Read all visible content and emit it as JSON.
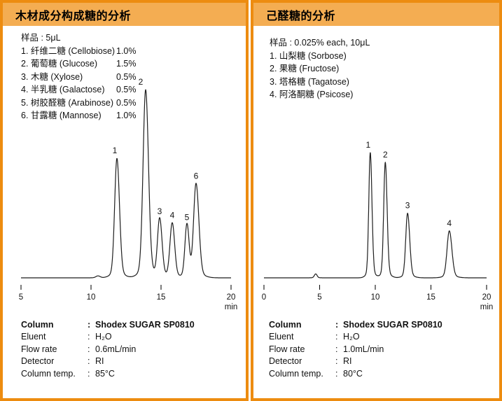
{
  "ui": {
    "colon": ":"
  },
  "panels": [
    {
      "title": "木材成分构成糖的分析",
      "sample_header": "样品 : 5μL",
      "sample_items": [
        {
          "name": "1. 纤维二糖 (Cellobiose)",
          "value": "1.0%"
        },
        {
          "name": "2. 葡萄糖 (Glucose)",
          "value": "1.5%"
        },
        {
          "name": "3. 木糖 (Xylose)",
          "value": "0.5%"
        },
        {
          "name": "4. 半乳糖 (Galactose)",
          "value": "0.5%"
        },
        {
          "name": "5. 树胶醛糖 (Arabinose)",
          "value": "0.5%"
        },
        {
          "name": "6. 甘露糖 (Mannose)",
          "value": "1.0%"
        }
      ],
      "conditions": [
        {
          "label": "Column",
          "value": "Shodex SUGAR SP0810",
          "bold": true
        },
        {
          "label": "Eluent",
          "value": "H₂O",
          "bold": false
        },
        {
          "label": "Flow rate",
          "value": "0.6mL/min",
          "bold": false
        },
        {
          "label": "Detector",
          "value": "RI",
          "bold": false
        },
        {
          "label": "Column temp.",
          "value": "85°C",
          "bold": false
        }
      ]
    },
    {
      "title": "己醛糖的分析",
      "sample_header": "样品 : 0.025% each, 10μL",
      "sample_items": [
        {
          "name": "1. 山梨糖 (Sorbose)",
          "value": ""
        },
        {
          "name": "2. 果糖 (Fructose)",
          "value": ""
        },
        {
          "name": "3. 塔格糖 (Tagatose)",
          "value": ""
        },
        {
          "name": "4. 阿洛酮糖 (Psicose)",
          "value": ""
        }
      ],
      "conditions": [
        {
          "label": "Column",
          "value": "Shodex SUGAR SP0810",
          "bold": true
        },
        {
          "label": "Eluent",
          "value": "H₂O",
          "bold": false
        },
        {
          "label": "Flow rate",
          "value": "1.0mL/min",
          "bold": false
        },
        {
          "label": "Detector",
          "value": "RI",
          "bold": false
        },
        {
          "label": "Column temp.",
          "value": "80°C",
          "bold": false
        }
      ]
    }
  ],
  "chart_data": [
    {
      "type": "line",
      "title": "木材成分构成糖的分析",
      "xlabel": "min",
      "ylabel": "",
      "x_axis": {
        "min": 5,
        "max": 20,
        "ticks": [
          5,
          10,
          15,
          20
        ]
      },
      "ylim": [
        0,
        100
      ],
      "grid": false,
      "legend": false,
      "line_color": "#1e1e1e",
      "peaks": [
        {
          "label": "",
          "t": 10.5,
          "v": 1,
          "sl": 0.15,
          "sr": 0.15,
          "dx": 0
        },
        {
          "label": "1",
          "t": 11.85,
          "v": 61,
          "sl": 0.16,
          "sr": 0.18,
          "dx": -3
        },
        {
          "label": "2",
          "t": 13.9,
          "v": 96,
          "sl": 0.18,
          "sr": 0.2,
          "dx": -7
        },
        {
          "label": "3",
          "t": 14.9,
          "v": 30,
          "sl": 0.15,
          "sr": 0.17,
          "dx": 0
        },
        {
          "label": "4",
          "t": 15.8,
          "v": 28,
          "sl": 0.16,
          "sr": 0.17,
          "dx": 0
        },
        {
          "label": "5",
          "t": 16.85,
          "v": 27,
          "sl": 0.14,
          "sr": 0.15,
          "dx": 0
        },
        {
          "label": "6",
          "t": 17.5,
          "v": 48,
          "sl": 0.17,
          "sr": 0.2,
          "dx": 0
        }
      ]
    },
    {
      "type": "line",
      "title": "己醛糖的分析",
      "xlabel": "min",
      "ylabel": "",
      "x_axis": {
        "min": 0,
        "max": 20,
        "ticks": [
          0,
          5,
          10,
          15,
          20
        ]
      },
      "ylim": [
        0,
        100
      ],
      "grid": false,
      "legend": false,
      "line_color": "#1e1e1e",
      "peaks": [
        {
          "label": "",
          "t": 4.65,
          "v": 2,
          "sl": 0.12,
          "sr": 0.12,
          "dx": 0
        },
        {
          "label": "1",
          "t": 9.55,
          "v": 64,
          "sl": 0.13,
          "sr": 0.15,
          "dx": -3
        },
        {
          "label": "2",
          "t": 10.9,
          "v": 59,
          "sl": 0.14,
          "sr": 0.16,
          "dx": 0
        },
        {
          "label": "3",
          "t": 12.9,
          "v": 33,
          "sl": 0.16,
          "sr": 0.19,
          "dx": 0
        },
        {
          "label": "4",
          "t": 16.65,
          "v": 24,
          "sl": 0.2,
          "sr": 0.23,
          "dx": 0
        }
      ]
    }
  ]
}
